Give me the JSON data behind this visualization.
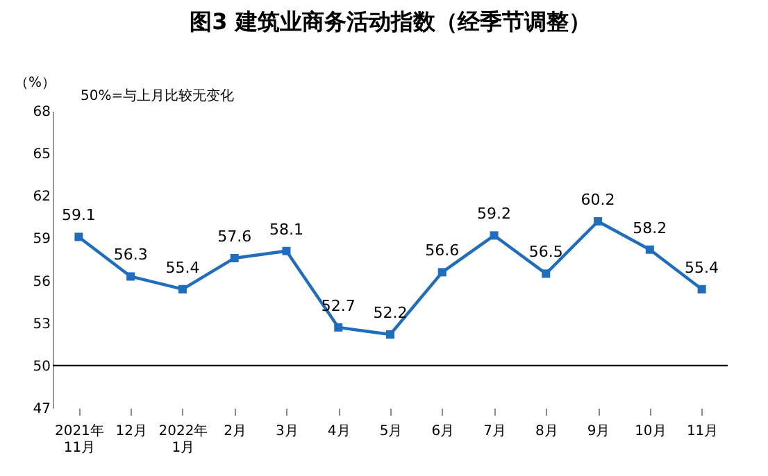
{
  "chart_data": {
    "type": "line",
    "title": "图3  建筑业商务活动指数（经季节调整）",
    "ylabel": "（%）",
    "annotations": [
      "50%=与上月比较无变化"
    ],
    "categories": [
      "2021年\n11月",
      "12月",
      "2022年\n1月",
      "2月",
      "3月",
      "4月",
      "5月",
      "6月",
      "7月",
      "8月",
      "9月",
      "10月",
      "11月"
    ],
    "series": [
      {
        "color": "#1f6dbf",
        "values": [
          59.1,
          56.3,
          55.4,
          57.6,
          58.1,
          52.7,
          52.2,
          56.6,
          59.2,
          56.5,
          60.2,
          58.2,
          55.4
        ]
      }
    ],
    "ylim": [
      47,
      68
    ],
    "yticks": [
      47,
      50,
      53,
      56,
      59,
      62,
      65,
      68
    ],
    "ref_lines": [
      {
        "axis": "y",
        "value": 50,
        "color": "#000000"
      }
    ],
    "data_labels": true,
    "marker": "square",
    "line_style": "solid",
    "grid": false,
    "legend": false
  }
}
